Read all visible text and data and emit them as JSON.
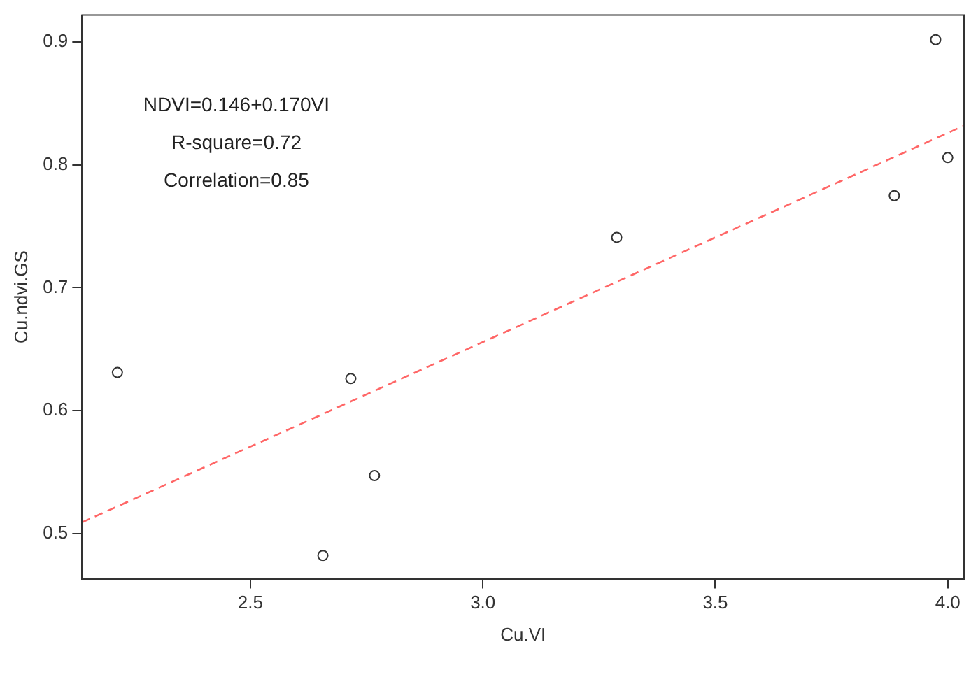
{
  "chart_data": {
    "type": "scatter",
    "xlabel": "Cu.VI",
    "ylabel": "Cu.ndvi.GS",
    "annotations": [
      "NDVI=0.146+0.170VI",
      "R-square=0.72",
      "Correlation=0.85"
    ],
    "xlim": [
      2.138,
      4.035
    ],
    "ylim": [
      0.463,
      0.922
    ],
    "xticks": [
      2.5,
      {
        "value": 3,
        "label": "3.0"
      },
      3.5,
      {
        "value": 4,
        "label": "4.0"
      }
    ],
    "yticks": [
      0.5,
      0.6,
      0.7,
      0.8,
      0.9
    ],
    "grid": false,
    "legend": false,
    "marker": "circle",
    "series": [
      {
        "color": "#333333",
        "x": [
          2.214,
          2.656,
          2.716,
          2.767,
          3.288,
          3.885,
          3.974,
          4.0
        ],
        "values": [
          0.631,
          0.482,
          0.626,
          0.547,
          0.741,
          0.775,
          0.902,
          0.806
        ]
      },
      {
        "type": "line",
        "color": "#ff6666",
        "line_style": "dashed",
        "marker": "none",
        "x": [
          2.138,
          4.035
        ],
        "values": [
          0.509,
          0.832
        ]
      }
    ]
  }
}
